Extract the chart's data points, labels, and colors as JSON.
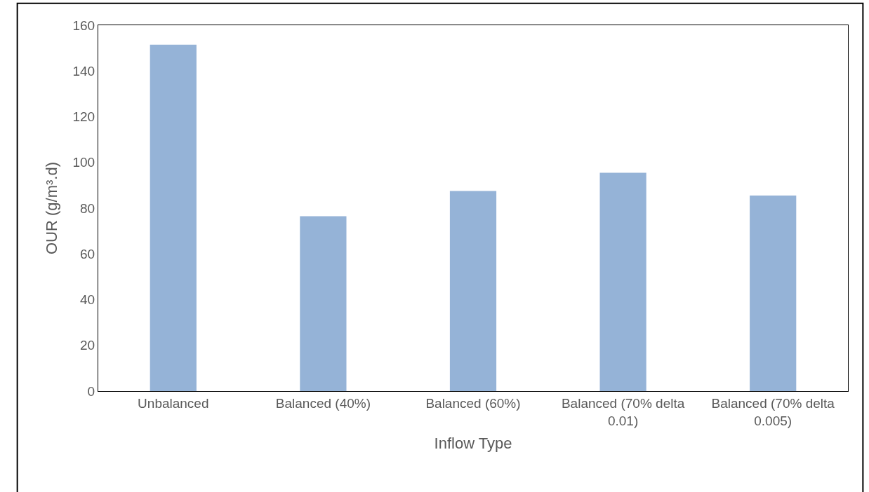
{
  "chart_data": {
    "type": "bar",
    "categories": [
      "Unbalanced",
      "Balanced (40%)",
      "Balanced (60%)",
      "Balanced (70% delta 0.01)",
      "Balanced (70% delta 0.005)"
    ],
    "values": [
      151.5,
      76.5,
      87.5,
      95.5,
      85.5
    ],
    "color": "#95b3d7",
    "xlabel": "Inflow Type",
    "ylabel": "OUR (g/m³.d)",
    "ylim": [
      0,
      160
    ],
    "yticks": [
      0,
      20,
      40,
      60,
      80,
      100,
      120,
      140,
      160
    ]
  }
}
